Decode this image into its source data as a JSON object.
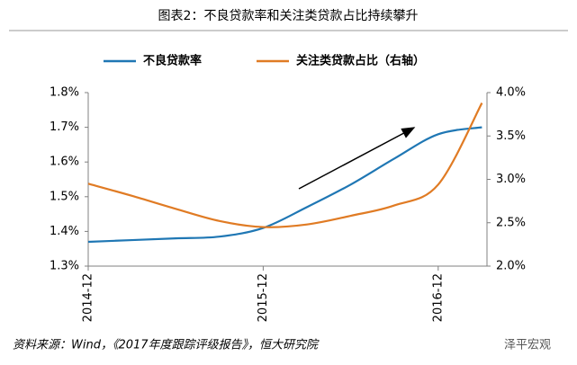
{
  "chart_data": {
    "type": "line",
    "title": "图表2：不良贷款率和关注类贷款占比持续攀升",
    "source": "资料来源：Wind，《2017年度跟踪评级报告》，恒大研究院",
    "watermark": "泽平宏观",
    "x": [
      "2014-12",
      null,
      null,
      null,
      "2015-12",
      null,
      null,
      null,
      "2016-12",
      null
    ],
    "series": [
      {
        "name": "不良贷款率",
        "color": "#1f77b4",
        "values": [
          1.37,
          1.375,
          1.38,
          1.385,
          1.41,
          1.47,
          1.535,
          1.61,
          1.68,
          1.7
        ]
      },
      {
        "name": "关注类贷款占比（右轴）",
        "color": "#e07b24",
        "axis": "y2",
        "values": [
          2.95,
          2.81,
          2.66,
          2.52,
          2.45,
          2.48,
          2.58,
          2.7,
          2.94,
          3.88
        ]
      }
    ],
    "ylim": [
      1.3,
      1.8
    ],
    "yticks": [
      {
        "value": 1.3,
        "label": "1.3%"
      },
      {
        "value": 1.4,
        "label": "1.4%"
      },
      {
        "value": 1.5,
        "label": "1.5%"
      },
      {
        "value": 1.6,
        "label": "1.6%"
      },
      {
        "value": 1.7,
        "label": "1.7%"
      },
      {
        "value": 1.8,
        "label": "1.8%"
      }
    ],
    "y2lim": [
      2.0,
      4.0
    ],
    "y2ticks": [
      {
        "value": 2.0,
        "label": "2.0%"
      },
      {
        "value": 2.5,
        "label": "2.5%"
      },
      {
        "value": 3.0,
        "label": "3.0%"
      },
      {
        "value": 3.5,
        "label": "3.5%"
      },
      {
        "value": 4.0,
        "label": "4.0%"
      }
    ],
    "legend": "top"
  }
}
